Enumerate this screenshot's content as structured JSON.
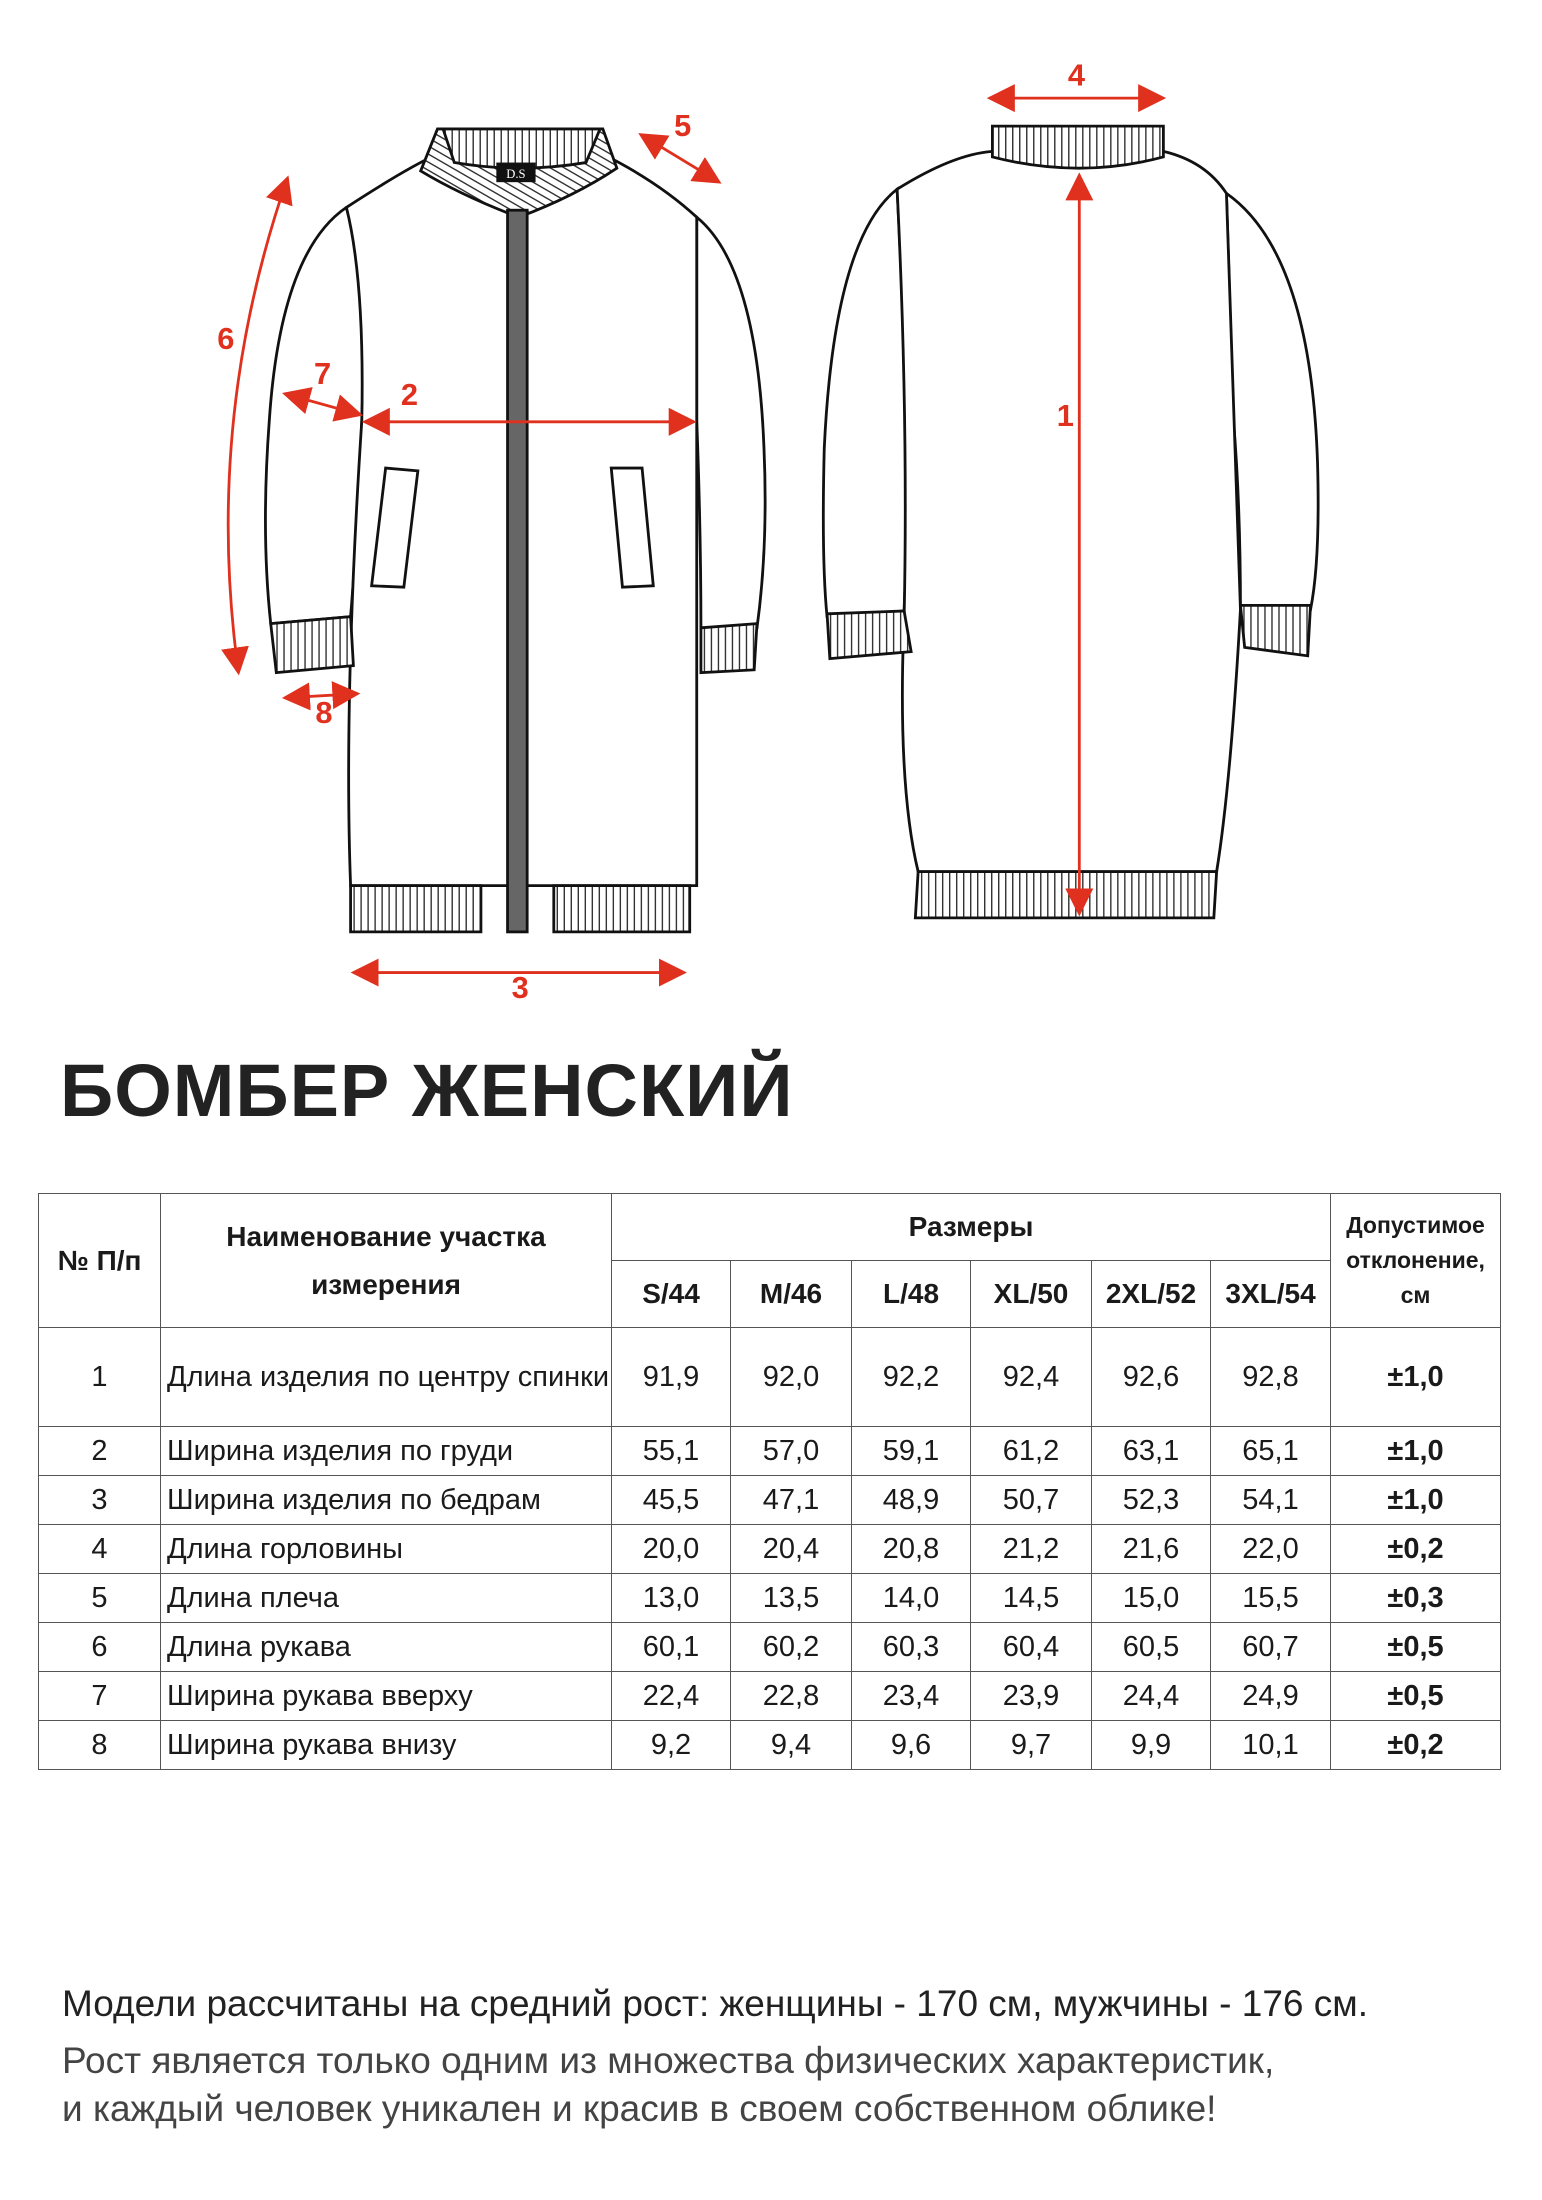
{
  "drawing": {
    "measure_labels": [
      "1",
      "2",
      "3",
      "4",
      "5",
      "6",
      "7",
      "8"
    ],
    "brand_tag": "D.S",
    "accent_color": "#e0301e"
  },
  "title": "БОМБЕР ЖЕНСКИЙ",
  "table": {
    "headers": {
      "number": "№ П/п",
      "name": "Наименование участка измерения",
      "sizes": "Размеры",
      "tolerance": "Допустимое отклонение, см"
    },
    "sizes": [
      "S/44",
      "M/46",
      "L/48",
      "XL/50",
      "2XL/52",
      "3XL/54"
    ],
    "rows": [
      {
        "n": "1",
        "name": "Длина изделия по центру спинки",
        "values": [
          "91,9",
          "92,0",
          "92,2",
          "92,4",
          "92,6",
          "92,8"
        ],
        "tol": "±1,0"
      },
      {
        "n": "2",
        "name": "Ширина изделия по груди",
        "values": [
          "55,1",
          "57,0",
          "59,1",
          "61,2",
          "63,1",
          "65,1"
        ],
        "tol": "±1,0"
      },
      {
        "n": "3",
        "name": "Ширина изделия по бедрам",
        "values": [
          "45,5",
          "47,1",
          "48,9",
          "50,7",
          "52,3",
          "54,1"
        ],
        "tol": "±1,0"
      },
      {
        "n": "4",
        "name": "Длина горловины",
        "values": [
          "20,0",
          "20,4",
          "20,8",
          "21,2",
          "21,6",
          "22,0"
        ],
        "tol": "±0,2"
      },
      {
        "n": "5",
        "name": "Длина плеча",
        "values": [
          "13,0",
          "13,5",
          "14,0",
          "14,5",
          "15,0",
          "15,5"
        ],
        "tol": "±0,3"
      },
      {
        "n": "6",
        "name": "Длина рукава",
        "values": [
          "60,1",
          "60,2",
          "60,3",
          "60,4",
          "60,5",
          "60,7"
        ],
        "tol": "±0,5"
      },
      {
        "n": "7",
        "name": "Ширина рукава вверху",
        "values": [
          "22,4",
          "22,8",
          "23,4",
          "23,9",
          "24,4",
          "24,9"
        ],
        "tol": "±0,5"
      },
      {
        "n": "8",
        "name": "Ширина рукава внизу",
        "values": [
          "9,2",
          "9,4",
          "9,6",
          "9,7",
          "9,9",
          "10,1"
        ],
        "tol": "±0,2"
      }
    ]
  },
  "footer": {
    "line1": "Модели рассчитаны на средний рост: женщины - 170 см, мужчины - 176 см.",
    "line2": "Рост является только одним из множества физических характеристик,",
    "line3": "и каждый человек уникален и красив в своем собственном облике!"
  }
}
